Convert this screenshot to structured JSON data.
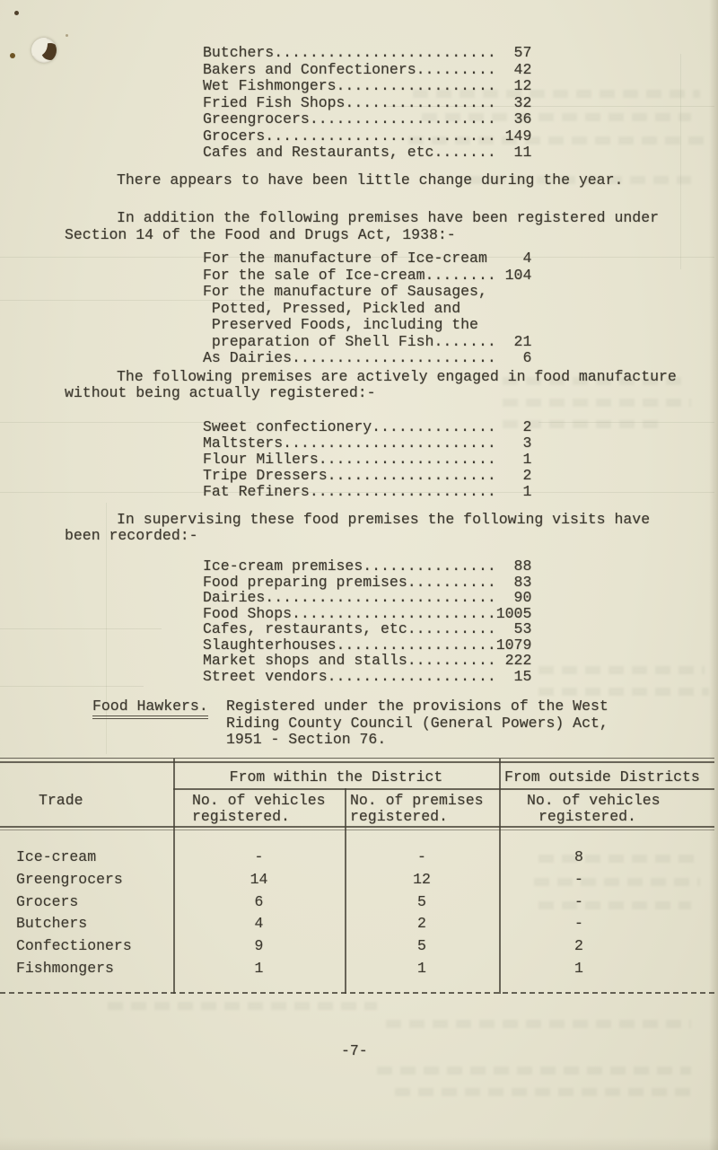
{
  "page": {
    "page_number": "-7-"
  },
  "premises_list": {
    "items": [
      {
        "label": "Butchers",
        "value": "57",
        "dots": true
      },
      {
        "label": "Bakers and Confectioners",
        "value": "42",
        "dots": true
      },
      {
        "label": "Wet Fishmongers",
        "value": "12",
        "dots": true
      },
      {
        "label": "Fried Fish Shops",
        "value": "32",
        "dots": true
      },
      {
        "label": "Greengrocers",
        "value": "36",
        "dots": true
      },
      {
        "label": "Grocers",
        "value": "149",
        "dots": true
      },
      {
        "label": "Cafes and Restaurants, etc",
        "value": "11",
        "dots": true
      }
    ]
  },
  "paragraphs": {
    "change": [
      "There appears to have been little change during the year."
    ],
    "registered_intro": [
      "In addition the following premises have been registered under",
      "Section 14 of the Food and Drugs Act, 1938:-"
    ],
    "unregistered_intro": [
      "The following premises are actively engaged in food manufacture",
      "without being actually registered:-"
    ],
    "visits_intro": [
      "In supervising these food premises the following visits have",
      "been recorded:-"
    ]
  },
  "registrations_list": {
    "items": [
      {
        "label": "For the manufacture of Ice-cream",
        "value": "4",
        "dots": false
      },
      {
        "label": "For the sale of Ice-cream",
        "value": "104",
        "dots": true
      },
      {
        "label": "For the manufacture of Sausages,",
        "value": null,
        "dots": false
      },
      {
        "label": " Potted, Pressed, Pickled and",
        "value": null,
        "dots": false
      },
      {
        "label": " Preserved Foods, including the",
        "value": null,
        "dots": false
      },
      {
        "label": " preparation of Shell Fish",
        "value": "21",
        "dots": true
      },
      {
        "label": "As Dairies",
        "value": "6",
        "dots": true
      }
    ]
  },
  "unregistered_list": {
    "items": [
      {
        "label": "Sweet confectionery",
        "value": "2",
        "dots": true
      },
      {
        "label": "Maltsters",
        "value": "3",
        "dots": true
      },
      {
        "label": "Flour Millers",
        "value": "1",
        "dots": true
      },
      {
        "label": "Tripe Dressers",
        "value": "2",
        "dots": true
      },
      {
        "label": "Fat Refiners",
        "value": "1",
        "dots": true
      }
    ]
  },
  "visits_list": {
    "items": [
      {
        "label": "Ice-cream premises",
        "value": "88",
        "dots": true
      },
      {
        "label": "Food preparing premises",
        "value": "83",
        "dots": true
      },
      {
        "label": "Dairies",
        "value": "90",
        "dots": true
      },
      {
        "label": "Food Shops",
        "value": "1005",
        "dots": true
      },
      {
        "label": "Cafes, restaurants, etc",
        "value": "53",
        "dots": true
      },
      {
        "label": "Slaughterhouses",
        "value": "1079",
        "dots": true
      },
      {
        "label": "Market shops and stalls",
        "value": "222",
        "dots": true
      },
      {
        "label": "Street vendors",
        "value": "15",
        "dots": true
      }
    ]
  },
  "food_hawkers": {
    "heading": "Food Hawkers.",
    "lines": [
      "Registered under the provisions of the West",
      "Riding County Council (General Powers) Act,",
      "1951 - Section 76."
    ]
  },
  "table": {
    "group_headers": {
      "within": "From within the District",
      "outside": "From outside Districts"
    },
    "col_headers": {
      "trade": "Trade",
      "within_vehicles": [
        "No. of vehicles",
        "registered."
      ],
      "within_premises": [
        "No. of premises",
        "registered."
      ],
      "outside_vehicles": [
        "No. of vehicles",
        "registered."
      ]
    },
    "rows": [
      {
        "trade": "Ice-cream",
        "within_vehicles": "-",
        "within_premises": "-",
        "outside_vehicles": "8"
      },
      {
        "trade": "Greengrocers",
        "within_vehicles": "14",
        "within_premises": "12",
        "outside_vehicles": "-"
      },
      {
        "trade": "Grocers",
        "within_vehicles": "6",
        "within_premises": "5",
        "outside_vehicles": "-"
      },
      {
        "trade": "Butchers",
        "within_vehicles": "4",
        "within_premises": "2",
        "outside_vehicles": "-"
      },
      {
        "trade": "Confectioners",
        "within_vehicles": "9",
        "within_premises": "5",
        "outside_vehicles": "2"
      },
      {
        "trade": "Fishmongers",
        "within_vehicles": "1",
        "within_premises": "1",
        "outside_vehicles": "1"
      }
    ]
  }
}
